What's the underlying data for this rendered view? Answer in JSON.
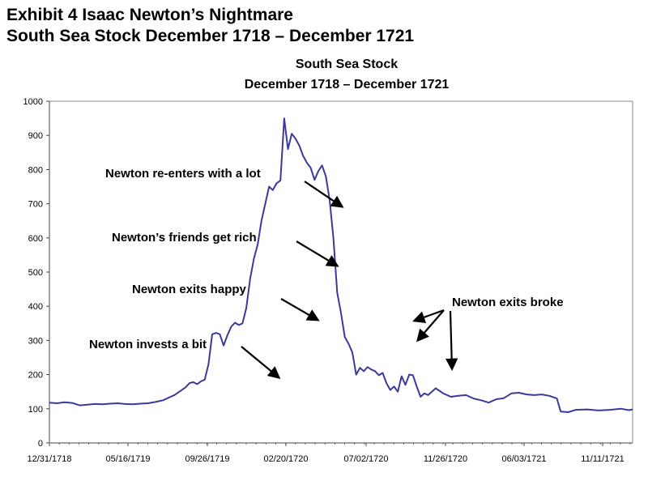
{
  "exhibit": {
    "title_line1": "Exhibit 4  Isaac Newton’s Nightmare",
    "title_line2": "South Sea Stock December 1718 – December 1721"
  },
  "chart_data": {
    "type": "line",
    "title": "South Sea Stock",
    "subtitle": "December 1718 – December 1721",
    "xlabel": "",
    "ylabel": "",
    "ylim": [
      0,
      1000
    ],
    "yticks": [
      0,
      100,
      200,
      300,
      400,
      500,
      600,
      700,
      800,
      900,
      1000
    ],
    "xticks": [
      "12/31/1718",
      "05/16/1719",
      "09/26/1719",
      "02/20/1720",
      "07/02/1720",
      "11/26/1720",
      "06/03/1721",
      "11/11/1721"
    ],
    "grid": false,
    "line_color": "#3a3a9c",
    "series": [
      {
        "values": [
          [
            0.0,
            118
          ],
          [
            0.02,
            116
          ],
          [
            0.04,
            119
          ],
          [
            0.06,
            117
          ],
          [
            0.08,
            110
          ],
          [
            0.1,
            112
          ],
          [
            0.12,
            114
          ],
          [
            0.14,
            113
          ],
          [
            0.16,
            115
          ],
          [
            0.18,
            116
          ],
          [
            0.2,
            114
          ],
          [
            0.22,
            113
          ],
          [
            0.24,
            115
          ],
          [
            0.26,
            116
          ],
          [
            0.28,
            120
          ],
          [
            0.3,
            125
          ],
          [
            0.32,
            135
          ],
          [
            0.33,
            140
          ],
          [
            0.36,
            163
          ],
          [
            0.37,
            175
          ],
          [
            0.38,
            178
          ],
          [
            0.39,
            172
          ],
          [
            0.4,
            180
          ],
          [
            0.41,
            185
          ],
          [
            0.42,
            230
          ],
          [
            0.43,
            318
          ],
          [
            0.44,
            322
          ],
          [
            0.45,
            318
          ],
          [
            0.46,
            285
          ],
          [
            0.47,
            315
          ],
          [
            0.48,
            340
          ],
          [
            0.49,
            352
          ],
          [
            0.5,
            345
          ],
          [
            0.51,
            350
          ],
          [
            0.52,
            395
          ],
          [
            0.53,
            480
          ],
          [
            0.54,
            540
          ],
          [
            0.55,
            580
          ],
          [
            0.56,
            650
          ],
          [
            0.57,
            700
          ],
          [
            0.58,
            750
          ],
          [
            0.59,
            740
          ],
          [
            0.6,
            760
          ],
          [
            0.61,
            768
          ],
          [
            0.62,
            950
          ],
          [
            0.63,
            860
          ],
          [
            0.64,
            905
          ],
          [
            0.65,
            890
          ],
          [
            0.66,
            870
          ],
          [
            0.67,
            840
          ],
          [
            0.68,
            820
          ],
          [
            0.69,
            805
          ],
          [
            0.7,
            770
          ],
          [
            0.71,
            795
          ],
          [
            0.72,
            812
          ],
          [
            0.73,
            780
          ],
          [
            0.74,
            710
          ],
          [
            0.75,
            600
          ],
          [
            0.76,
            440
          ],
          [
            0.77,
            380
          ],
          [
            0.78,
            310
          ],
          [
            0.79,
            290
          ],
          [
            0.8,
            265
          ],
          [
            0.81,
            200
          ],
          [
            0.82,
            220
          ],
          [
            0.83,
            210
          ],
          [
            0.84,
            222
          ],
          [
            0.85,
            215
          ],
          [
            0.86,
            210
          ],
          [
            0.87,
            198
          ],
          [
            0.88,
            205
          ],
          [
            0.89,
            175
          ],
          [
            0.9,
            155
          ],
          [
            0.91,
            165
          ],
          [
            0.92,
            150
          ],
          [
            0.93,
            195
          ],
          [
            0.94,
            170
          ],
          [
            0.95,
            200
          ],
          [
            0.96,
            198
          ],
          [
            0.97,
            165
          ],
          [
            0.98,
            135
          ],
          [
            0.99,
            145
          ],
          [
            1.0,
            140
          ],
          [
            1.02,
            160
          ],
          [
            1.04,
            145
          ],
          [
            1.06,
            135
          ],
          [
            1.08,
            138
          ],
          [
            1.1,
            140
          ],
          [
            1.12,
            130
          ],
          [
            1.14,
            125
          ],
          [
            1.16,
            118
          ],
          [
            1.18,
            128
          ],
          [
            1.2,
            131
          ],
          [
            1.22,
            145
          ],
          [
            1.24,
            147
          ],
          [
            1.26,
            142
          ],
          [
            1.28,
            140
          ],
          [
            1.3,
            142
          ],
          [
            1.32,
            138
          ],
          [
            1.34,
            130
          ],
          [
            1.35,
            92
          ],
          [
            1.37,
            90
          ],
          [
            1.39,
            97
          ],
          [
            1.42,
            98
          ],
          [
            1.45,
            95
          ],
          [
            1.48,
            97
          ],
          [
            1.51,
            100
          ],
          [
            1.53,
            96
          ],
          [
            1.54,
            98
          ]
        ]
      }
    ],
    "annotations": [
      {
        "text": "Newton re-enters with a lot"
      },
      {
        "text": "Newton’s friends get rich"
      },
      {
        "text": "Newton exits happy"
      },
      {
        "text": "Newton invests a bit"
      },
      {
        "text": "Newton exits broke"
      }
    ]
  }
}
